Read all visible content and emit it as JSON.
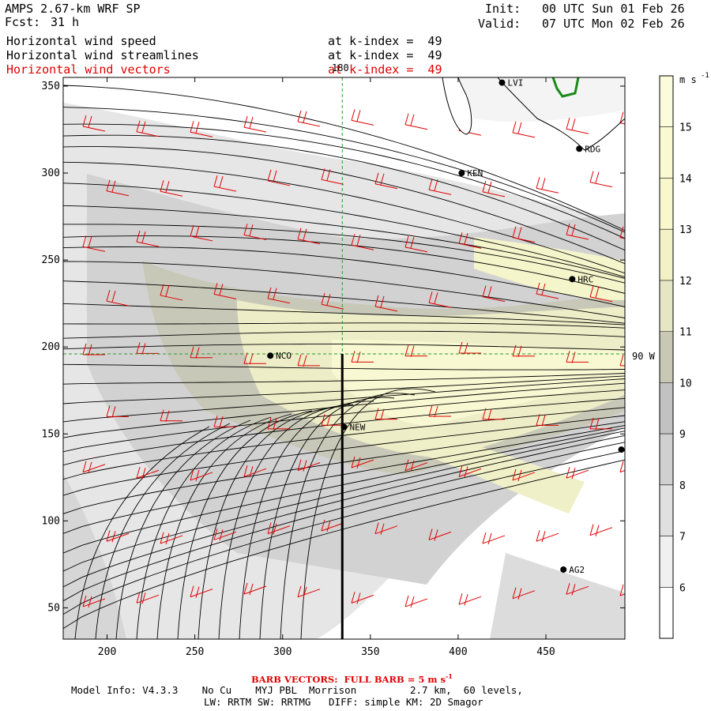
{
  "header": {
    "model": "AMPS 2.67-km WRF SP",
    "fcst_label": "Fcst:",
    "fcst_value": "31 h",
    "init_label": "Init:",
    "init_value": "00 UTC Sun 01 Feb 26",
    "valid_label": "Valid:",
    "valid_value": "07 UTC Mon 02 Feb 26"
  },
  "fields": [
    {
      "name": "Horizontal wind speed",
      "level": "at k-index =  49"
    },
    {
      "name": "Horizontal wind streamlines",
      "level": "at k-index =  49"
    },
    {
      "name": "Horizontal wind vectors",
      "level": "at k-index =  49"
    }
  ],
  "colorbar": {
    "units": "m s",
    "units_exp": "-1",
    "ticks": [
      "6",
      "7",
      "8",
      "9",
      "10",
      "11",
      "12",
      "13",
      "14",
      "15"
    ],
    "colors": [
      "#ffffff",
      "#f0f0f0",
      "#e0e0e0",
      "#d0d0d0",
      "#c2c2c2",
      "#c8c8b4",
      "#e6e6c4",
      "#f2f2c6",
      "#f8f8cc",
      "#fafad2",
      "#fcfcdc"
    ]
  },
  "map_labels": {
    "meridian": "180",
    "parallel": "90 W"
  },
  "stations": [
    "LVI",
    "RDG",
    "KEN",
    "HRC",
    "NCO",
    "NEW",
    "AG2"
  ],
  "chart_data": {
    "type": "contour-map",
    "title": "Horizontal wind speed, streamlines and vectors at k-index 49",
    "xlabel": "",
    "ylabel": "",
    "xlim": [
      175,
      495
    ],
    "ylim": [
      32,
      355
    ],
    "xticks": [
      200,
      250,
      300,
      350,
      400,
      450
    ],
    "yticks": [
      50,
      100,
      150,
      200,
      250,
      300,
      350
    ],
    "x_tick_labels": [
      "200",
      "250",
      "300",
      "350",
      "400",
      "450"
    ],
    "y_tick_labels": [
      "50",
      "100",
      "150",
      "200",
      "250",
      "300",
      "350"
    ],
    "speed_range": [
      6,
      15.5
    ],
    "reference_lines": {
      "vertical_x": 334,
      "horizontal_y": 196,
      "cross_section_x": 334,
      "cross_section_y_range": [
        32,
        196
      ]
    },
    "station_points": [
      {
        "name": "LVI",
        "x": 425,
        "y": 352
      },
      {
        "name": "RDG",
        "x": 469,
        "y": 314
      },
      {
        "name": "KEN",
        "x": 402,
        "y": 300
      },
      {
        "name": "HRC",
        "x": 465,
        "y": 239
      },
      {
        "name": "NCO",
        "x": 293,
        "y": 195
      },
      {
        "name": "NEW",
        "x": 335,
        "y": 154
      },
      {
        "name": "AG2",
        "x": 460,
        "y": 72
      },
      {
        "name": "",
        "x": 493,
        "y": 141
      }
    ]
  },
  "footer": {
    "barb_note": "BARB VECTORS:  FULL BARB = 5 m s",
    "barb_exp": "-1",
    "model_info": "Model Info: V4.3.3    No Cu    MYJ PBL  Morrison         2.7 km,  60 levels,",
    "physics": "LW: RRTM SW: RRTMG   DIFF: simple KM: 2D Smagor"
  }
}
